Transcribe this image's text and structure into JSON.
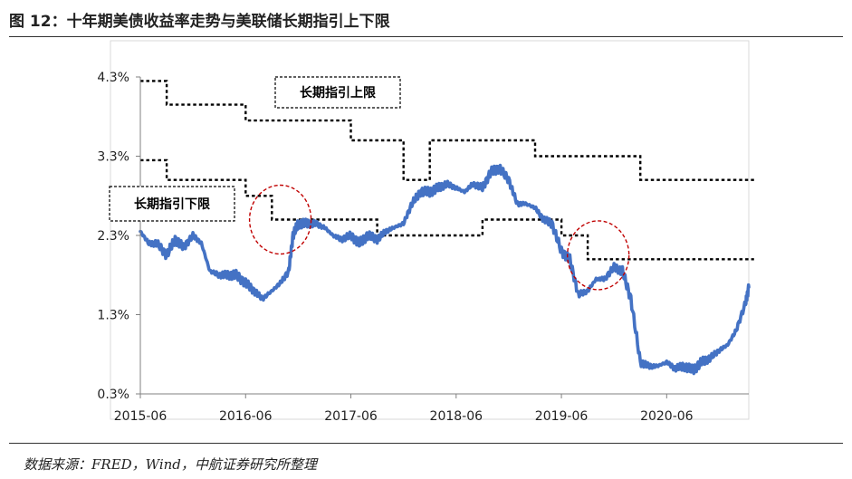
{
  "figure_title": "图 12：十年期美债收益率走势与美联储长期指引上下限",
  "source": "数据来源：FRED，Wind，中航证券研究所整理",
  "colors": {
    "yield_line": "#4472C4",
    "guidance_line": "#000000",
    "circle": "#C00000",
    "frame": "#D9D9D9",
    "axis": "#808080"
  },
  "chart_data": {
    "type": "line",
    "title": "",
    "xlabel": "",
    "ylabel": "",
    "x_ticks": [
      "2015-06",
      "2016-06",
      "2017-06",
      "2018-06",
      "2019-06",
      "2020-06"
    ],
    "y_ticks": [
      "0.3%",
      "1.3%",
      "2.3%",
      "3.3%",
      "4.3%"
    ],
    "xlim": [
      2015.4,
      2021.25
    ],
    "ylim": [
      0.3,
      4.3
    ],
    "annotations": [
      {
        "text": "长期指引上限",
        "x": 2017.0,
        "y": 3.95
      },
      {
        "text": "长期指引下限",
        "x": 2015.55,
        "y": 2.7
      }
    ],
    "highlight_circles": [
      {
        "x": 2016.75,
        "y": 2.5
      },
      {
        "x": 2019.77,
        "y": 2.05
      }
    ],
    "series": [
      {
        "points": [
          [
            2015.42,
            4.25
          ],
          [
            2015.67,
            4.25
          ],
          [
            2015.67,
            3.95
          ],
          [
            2016.42,
            3.95
          ],
          [
            2016.42,
            3.75
          ],
          [
            2017.42,
            3.75
          ],
          [
            2017.42,
            3.5
          ],
          [
            2017.92,
            3.5
          ],
          [
            2017.92,
            3.0
          ],
          [
            2018.17,
            3.0
          ],
          [
            2018.17,
            3.5
          ],
          [
            2019.17,
            3.5
          ],
          [
            2019.17,
            3.3
          ],
          [
            2020.17,
            3.3
          ],
          [
            2020.17,
            3.0
          ],
          [
            2021.25,
            3.0
          ]
        ]
      },
      {
        "points": [
          [
            2015.42,
            3.25
          ],
          [
            2015.67,
            3.25
          ],
          [
            2015.67,
            3.0
          ],
          [
            2016.42,
            3.0
          ],
          [
            2016.42,
            2.8
          ],
          [
            2016.67,
            2.8
          ],
          [
            2016.67,
            2.5
          ],
          [
            2017.67,
            2.5
          ],
          [
            2017.67,
            2.3
          ],
          [
            2018.67,
            2.3
          ],
          [
            2018.67,
            2.5
          ],
          [
            2019.42,
            2.5
          ],
          [
            2019.42,
            2.3
          ],
          [
            2019.67,
            2.3
          ],
          [
            2019.67,
            2.0
          ],
          [
            2021.25,
            2.0
          ]
        ]
      },
      {
        "points": [
          [
            2015.42,
            2.35
          ],
          [
            2015.5,
            2.2
          ],
          [
            2015.58,
            2.2
          ],
          [
            2015.67,
            2.05
          ],
          [
            2015.75,
            2.25
          ],
          [
            2015.83,
            2.15
          ],
          [
            2015.92,
            2.3
          ],
          [
            2016.0,
            2.2
          ],
          [
            2016.08,
            1.85
          ],
          [
            2016.17,
            1.8
          ],
          [
            2016.25,
            1.8
          ],
          [
            2016.33,
            1.8
          ],
          [
            2016.42,
            1.7
          ],
          [
            2016.5,
            1.6
          ],
          [
            2016.58,
            1.5
          ],
          [
            2016.67,
            1.6
          ],
          [
            2016.75,
            1.7
          ],
          [
            2016.83,
            1.85
          ],
          [
            2016.87,
            2.3
          ],
          [
            2016.92,
            2.45
          ],
          [
            2017.0,
            2.45
          ],
          [
            2017.08,
            2.45
          ],
          [
            2017.17,
            2.4
          ],
          [
            2017.25,
            2.3
          ],
          [
            2017.33,
            2.25
          ],
          [
            2017.42,
            2.3
          ],
          [
            2017.5,
            2.2
          ],
          [
            2017.58,
            2.3
          ],
          [
            2017.67,
            2.25
          ],
          [
            2017.75,
            2.35
          ],
          [
            2017.83,
            2.4
          ],
          [
            2017.92,
            2.45
          ],
          [
            2018.0,
            2.7
          ],
          [
            2018.08,
            2.85
          ],
          [
            2018.17,
            2.85
          ],
          [
            2018.25,
            2.9
          ],
          [
            2018.33,
            2.95
          ],
          [
            2018.42,
            2.9
          ],
          [
            2018.5,
            2.85
          ],
          [
            2018.58,
            2.95
          ],
          [
            2018.67,
            2.9
          ],
          [
            2018.75,
            3.1
          ],
          [
            2018.83,
            3.15
          ],
          [
            2018.92,
            3.0
          ],
          [
            2019.0,
            2.7
          ],
          [
            2019.08,
            2.7
          ],
          [
            2019.17,
            2.65
          ],
          [
            2019.25,
            2.5
          ],
          [
            2019.33,
            2.45
          ],
          [
            2019.42,
            2.1
          ],
          [
            2019.5,
            2.0
          ],
          [
            2019.58,
            1.55
          ],
          [
            2019.67,
            1.6
          ],
          [
            2019.75,
            1.75
          ],
          [
            2019.83,
            1.75
          ],
          [
            2019.92,
            1.9
          ],
          [
            2020.0,
            1.85
          ],
          [
            2020.08,
            1.5
          ],
          [
            2020.17,
            0.7
          ],
          [
            2020.25,
            0.65
          ],
          [
            2020.33,
            0.65
          ],
          [
            2020.42,
            0.7
          ],
          [
            2020.5,
            0.62
          ],
          [
            2020.58,
            0.65
          ],
          [
            2020.67,
            0.6
          ],
          [
            2020.75,
            0.7
          ],
          [
            2020.83,
            0.75
          ],
          [
            2020.92,
            0.85
          ],
          [
            2021.0,
            0.92
          ],
          [
            2021.08,
            1.1
          ],
          [
            2021.17,
            1.45
          ],
          [
            2021.2,
            1.65
          ]
        ]
      }
    ]
  }
}
